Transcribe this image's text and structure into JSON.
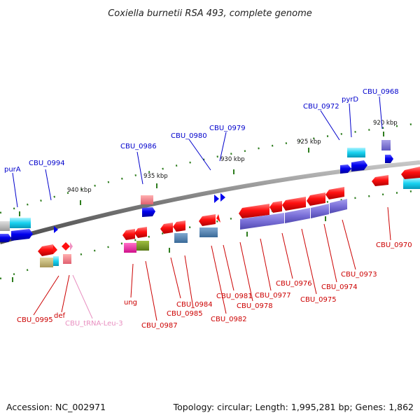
{
  "title": "Coxiella burnetii RSA 493, complete genome",
  "footer": {
    "accession": "Accession: NC_002971",
    "summary": "Topology: circular; Length: 1,995,281 bp; Genes: 1,862"
  },
  "scale": [
    "940 kbp",
    "935 kbp",
    "930 kbp",
    "925 kbp",
    "920 kbp"
  ],
  "colors": {
    "forward_label": "#0000cc",
    "reverse_label": "#cc0000",
    "trna_label": "#e88fc0",
    "backbone": "#8a8a8a",
    "tick": "#2e7d1e"
  },
  "labels": {
    "purA": "purA",
    "CBU_0994": "CBU_0994",
    "CBU_0986": "CBU_0986",
    "CBU_0980": "CBU_0980",
    "CBU_0979": "CBU_0979",
    "CBU_0972": "CBU_0972",
    "pyrD": "pyrD",
    "CBU_0968": "CBU_0968",
    "CBU_0995": "CBU_0995",
    "def": "def",
    "CBU_tRNA_Leu_3": "CBU_tRNA-Leu-3",
    "ung": "ung",
    "CBU_0987": "CBU_0987",
    "CBU_0985": "CBU_0985",
    "CBU_0984": "CBU_0984",
    "CBU_0982": "CBU_0982",
    "CBU_0981": "CBU_0981",
    "CBU_0978": "CBU_0978",
    "CBU_0977": "CBU_0977",
    "CBU_0976": "CBU_0976",
    "CBU_0975": "CBU_0975",
    "CBU_0974": "CBU_0974",
    "CBU_0973": "CBU_0973",
    "CBU_0970": "CBU_0970"
  }
}
